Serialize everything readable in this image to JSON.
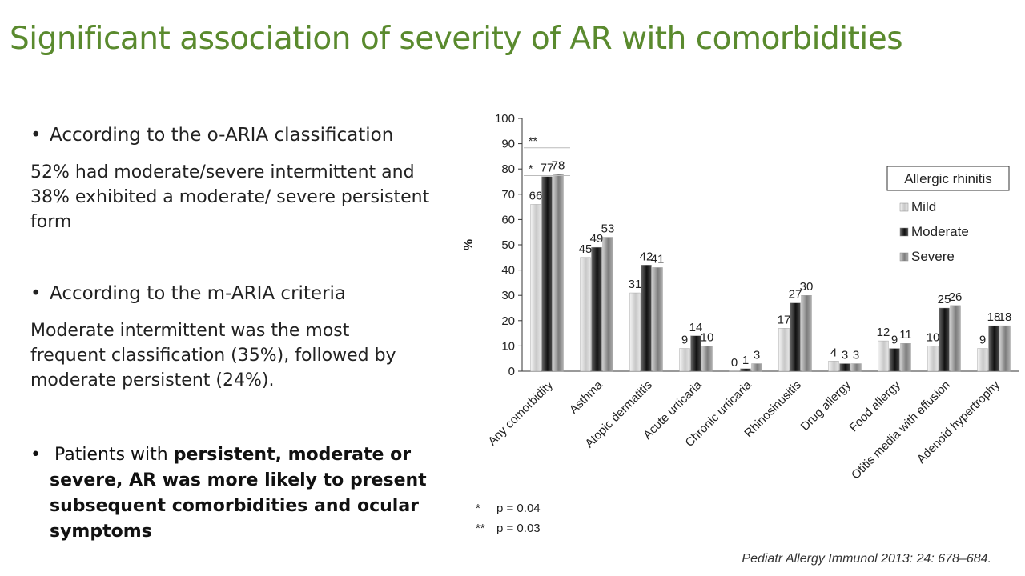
{
  "slide": {
    "title": "Significant association of severity of AR with comorbidities",
    "bullet1": "According to the o-ARIA classification",
    "para1_line1": "52% had moderate/severe  intermittent and",
    "para1_line2": "38% exhibited a moderate/  severe persistent",
    "para1_line3": "form",
    "bullet2": "According to the m-ARIA criteria",
    "para2_line1": "Moderate intermittent was the most",
    "para2_line2": "frequent classification (35%), followed by",
    "para2_line3": "moderate persistent (24%).",
    "bullet3_normal": "Patients with ",
    "bullet3_bold1": "persistent, moderate or",
    "bullet3_bold2": "severe, AR was more likely to present",
    "bullet3_bold3": "subsequent comorbidities and ocular",
    "bullet3_bold4": "symptoms",
    "bullet_symbol": "•",
    "citation": "Pediatr Allergy Immunol 2013: 24: 678–684."
  },
  "chart_data": {
    "type": "bar",
    "ylabel": "%",
    "ylim": [
      0,
      100
    ],
    "yticks": [
      0,
      10,
      20,
      30,
      40,
      50,
      60,
      70,
      80,
      90,
      100
    ],
    "categories": [
      "Any comorbidity",
      "Asthma",
      "Atopic dermatitis",
      "Acute urticaria",
      "Chronic urticaria",
      "Rhinosinusitis",
      "Drug allergy",
      "Food allergy",
      "Otitis media with effusion",
      "Adenoid hypertrophy"
    ],
    "series": [
      {
        "name": "Mild",
        "values": [
          66,
          45,
          31,
          9,
          0,
          17,
          4,
          12,
          10,
          9
        ],
        "color": "#dcdcdc"
      },
      {
        "name": "Moderate",
        "values": [
          77,
          49,
          42,
          14,
          1,
          27,
          3,
          9,
          25,
          18
        ],
        "color": "#3a3a3a"
      },
      {
        "name": "Severe",
        "values": [
          78,
          53,
          41,
          10,
          3,
          30,
          3,
          11,
          26,
          18
        ],
        "color": "#a8a8a8"
      }
    ],
    "legend_title": "Allergic rhinitis",
    "legend_position": "top-right",
    "significance": [
      {
        "label": "*",
        "y": 78
      },
      {
        "label": "**",
        "y": 89
      }
    ],
    "footnotes": [
      {
        "symbol": "*",
        "text": "p = 0.04"
      },
      {
        "symbol": "**",
        "text": "p = 0.03"
      }
    ],
    "grid": false
  }
}
